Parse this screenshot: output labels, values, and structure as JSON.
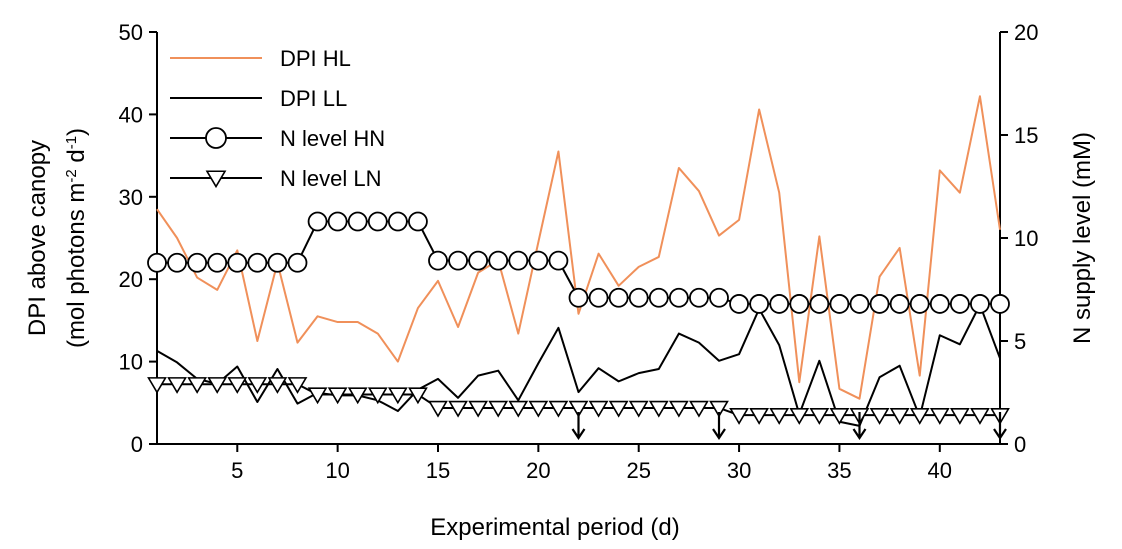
{
  "chart_data": {
    "type": "line",
    "xlabel": "Experimental period (d)",
    "ylabel_left": [
      "DPI above canopy",
      "(mol photons m",
      "-2",
      " d",
      "-1",
      ")"
    ],
    "ylabel_right": "N supply level (mM)",
    "xlim": [
      1,
      43
    ],
    "ylim_left": [
      0,
      50
    ],
    "ylim_right": [
      0,
      20
    ],
    "x_ticks": [
      5,
      10,
      15,
      20,
      25,
      30,
      35,
      40
    ],
    "y_ticks_left": [
      0,
      10,
      20,
      30,
      40,
      50
    ],
    "y_ticks_right": [
      0,
      5,
      10,
      15,
      20
    ],
    "x": [
      1,
      2,
      3,
      4,
      5,
      6,
      7,
      8,
      9,
      10,
      11,
      12,
      13,
      14,
      15,
      16,
      17,
      18,
      19,
      20,
      21,
      22,
      23,
      24,
      25,
      26,
      27,
      28,
      29,
      30,
      31,
      32,
      33,
      34,
      35,
      36,
      37,
      38,
      39,
      40,
      41,
      42,
      43
    ],
    "series": [
      {
        "name": "DPI HL",
        "axis": "left",
        "color": "#f0905a",
        "marker": "none",
        "values": [
          28.5,
          25,
          20.2,
          18.7,
          23.5,
          12.5,
          22,
          12.3,
          15.5,
          14.8,
          14.8,
          13.4,
          10,
          16.5,
          19.8,
          14.2,
          20.8,
          22.3,
          13.4,
          24.5,
          35.5,
          15.8,
          23.1,
          19.2,
          21.5,
          22.7,
          33.5,
          30.7,
          25.3,
          27.2,
          40.6,
          30.5,
          7.5,
          25.2,
          6.7,
          5.5,
          20.3,
          23.8,
          8.3,
          33.2,
          30.5,
          42.2,
          26
        ]
      },
      {
        "name": "DPI LL",
        "axis": "left",
        "color": "#000000",
        "marker": "none",
        "values": [
          11.3,
          9.9,
          7.9,
          7.3,
          9.4,
          5.1,
          9.1,
          4.9,
          6.2,
          5.9,
          5.9,
          5.3,
          4,
          6.6,
          7.9,
          5.6,
          8.3,
          8.9,
          5.3,
          9.8,
          14.1,
          6.3,
          9.2,
          7.6,
          8.6,
          9.1,
          13.4,
          12.3,
          10.1,
          10.9,
          16.4,
          12,
          3.6,
          10.1,
          2.7,
          2.2,
          8.1,
          9.5,
          3.3,
          13.2,
          12.1,
          16.9,
          10.4
        ]
      },
      {
        "name": "N level HN",
        "axis": "right",
        "color": "#000000",
        "marker": "circle",
        "values": [
          8.8,
          8.8,
          8.8,
          8.8,
          8.8,
          8.8,
          8.8,
          8.8,
          10.8,
          10.8,
          10.8,
          10.8,
          10.8,
          10.8,
          8.9,
          8.9,
          8.9,
          8.9,
          8.9,
          8.9,
          8.9,
          7.1,
          7.1,
          7.1,
          7.1,
          7.1,
          7.1,
          7.1,
          7.1,
          6.8,
          6.8,
          6.8,
          6.8,
          6.8,
          6.8,
          6.8,
          6.8,
          6.8,
          6.8,
          6.8,
          6.8,
          6.8,
          6.8
        ]
      },
      {
        "name": "N level LN",
        "axis": "right",
        "color": "#000000",
        "marker": "triangle-down",
        "values": [
          2.9,
          2.9,
          2.9,
          2.9,
          2.9,
          2.9,
          2.9,
          2.9,
          2.4,
          2.4,
          2.4,
          2.4,
          2.4,
          2.4,
          1.75,
          1.75,
          1.75,
          1.75,
          1.75,
          1.75,
          1.75,
          1.75,
          1.75,
          1.75,
          1.75,
          1.75,
          1.75,
          1.75,
          1.75,
          1.4,
          1.4,
          1.4,
          1.4,
          1.4,
          1.4,
          1.4,
          1.4,
          1.4,
          1.4,
          1.4,
          1.4,
          1.4,
          1.4
        ]
      }
    ],
    "arrows_at_x": [
      22,
      29,
      36,
      43
    ],
    "legend_placement": "top-left",
    "grid": false
  }
}
